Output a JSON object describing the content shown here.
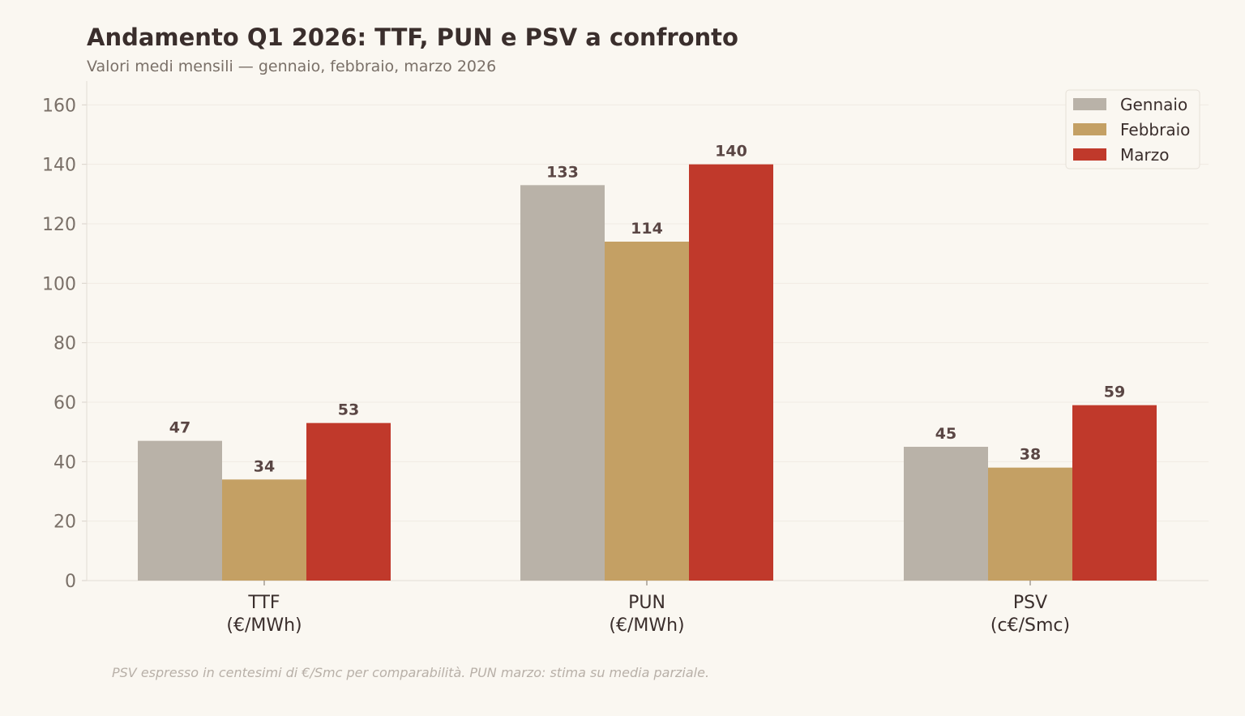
{
  "chart_data": {
    "type": "bar",
    "title": "Andamento Q1 2026: TTF, PUN e PSV a confronto",
    "subtitle": "Valori medi mensili — gennaio, febbraio, marzo 2026",
    "categories": [
      [
        "TTF",
        "(€/MWh)"
      ],
      [
        "PUN",
        "(€/MWh)"
      ],
      [
        "PSV",
        "(c€/Smc)"
      ]
    ],
    "series": [
      {
        "name": "Gennaio",
        "color": "#b9b2a8",
        "values": [
          47,
          133,
          45
        ]
      },
      {
        "name": "Febbraio",
        "color": "#c4a064",
        "values": [
          34,
          114,
          38
        ]
      },
      {
        "name": "Marzo",
        "color": "#c0392b",
        "values": [
          53,
          140,
          59
        ]
      }
    ],
    "ylim": [
      0,
      168
    ],
    "yticks": [
      0,
      20,
      40,
      60,
      80,
      100,
      120,
      140,
      160
    ],
    "grid": true,
    "legend_position": "top-right",
    "footnote": "PSV espresso in centesimi di €/Smc per comparabilità. PUN marzo: stima su media parziale."
  }
}
